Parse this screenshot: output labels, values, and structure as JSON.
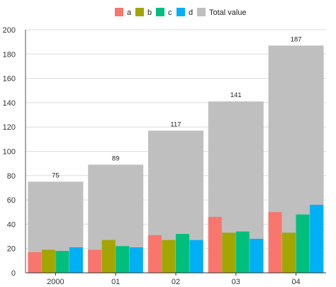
{
  "chart_data": {
    "type": "bar",
    "categories": [
      "2000",
      "01",
      "02",
      "03",
      "04"
    ],
    "series": [
      {
        "name": "a",
        "values": [
          17,
          19,
          31,
          46,
          50
        ],
        "color": "#f8766d"
      },
      {
        "name": "b",
        "values": [
          19,
          27,
          27,
          33,
          33
        ],
        "color": "#a3a500"
      },
      {
        "name": "c",
        "values": [
          18,
          22,
          32,
          34,
          48
        ],
        "color": "#00bf7d"
      },
      {
        "name": "d",
        "values": [
          21,
          21,
          27,
          28,
          56
        ],
        "color": "#00b0f6"
      }
    ],
    "total": {
      "name": "Total value",
      "values": [
        75,
        89,
        117,
        141,
        187
      ],
      "color": "#bfbfbf"
    },
    "data_labels": [
      "75",
      "89",
      "117",
      "141",
      "187"
    ],
    "y_ticks": [
      "0",
      "20",
      "40",
      "60",
      "80",
      "100",
      "120",
      "140",
      "160",
      "180",
      "200"
    ],
    "ylim": [
      0,
      200
    ],
    "grid": true,
    "legend_position": "top"
  }
}
